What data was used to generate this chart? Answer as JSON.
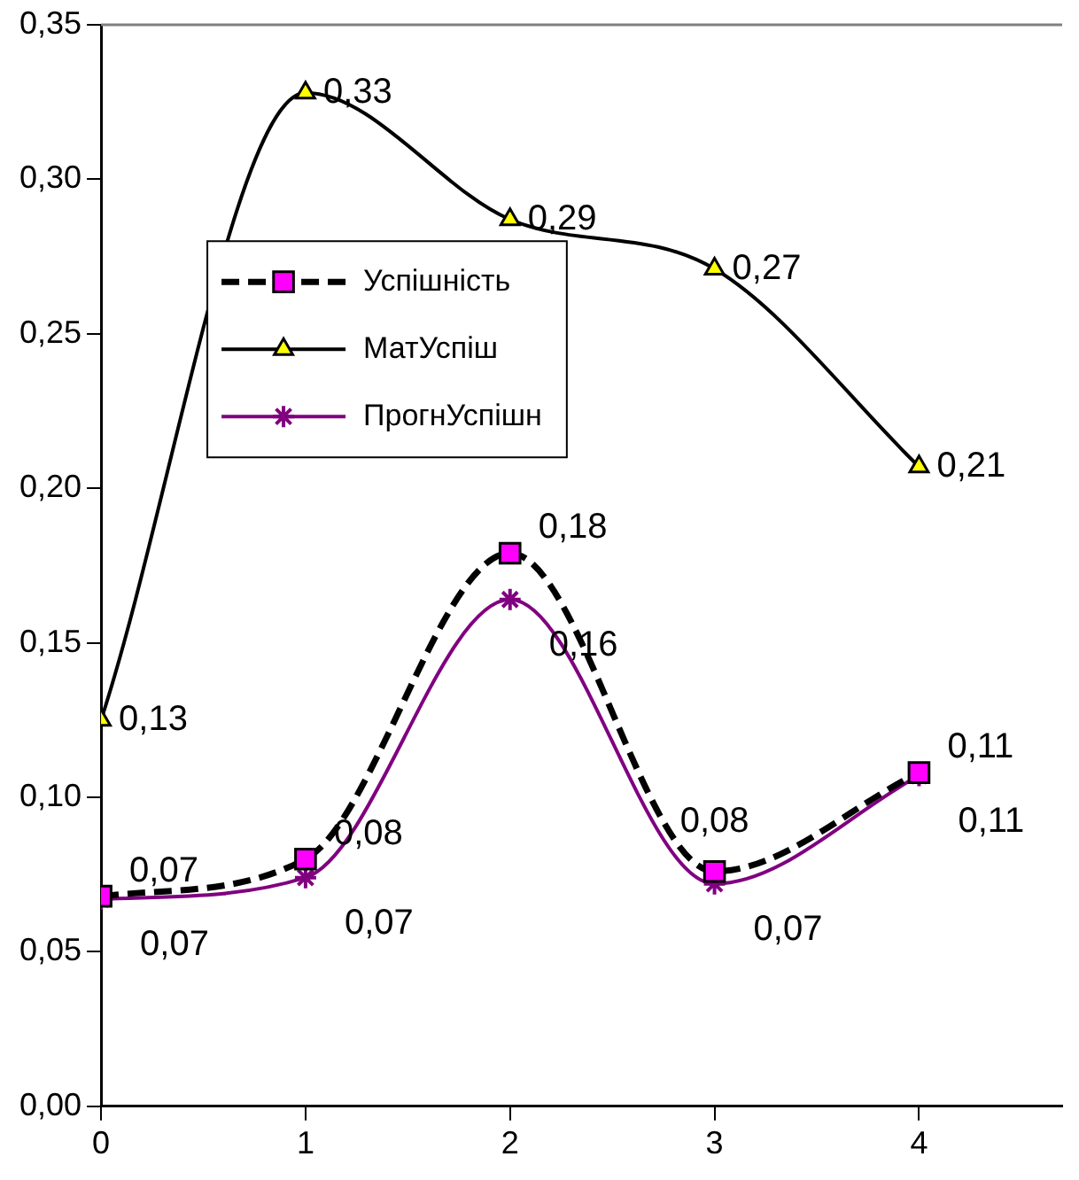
{
  "chart_data": {
    "type": "line",
    "x": [
      0,
      1,
      2,
      3,
      4
    ],
    "xlim": [
      0,
      4.7
    ],
    "xticks": [
      0,
      1,
      2,
      3,
      4
    ],
    "ylim": [
      0,
      0.35
    ],
    "yticks": [
      {
        "value": 0,
        "label": "0,00"
      },
      {
        "value": 0.05,
        "label": "0,05"
      },
      {
        "value": 0.1,
        "label": "0,10"
      },
      {
        "value": 0.15,
        "label": "0,15"
      },
      {
        "value": 0.2,
        "label": "0,20"
      },
      {
        "value": 0.25,
        "label": "0,25"
      },
      {
        "value": 0.3,
        "label": "0,30"
      },
      {
        "value": 0.35,
        "label": "0,35"
      }
    ],
    "grid": false,
    "legend": "left",
    "data_labels": true,
    "series": [
      {
        "name": "Успішність",
        "color": "#000000",
        "colors": [
          "#ff00ff",
          "#ff00ff",
          "#ff00ff",
          "#ff00ff",
          "#ff00ff"
        ],
        "marker": "square",
        "line_style": "dashed",
        "values": [
          0.068,
          0.08,
          0.179,
          0.076,
          0.108
        ],
        "value_labels": [
          "0,07",
          "0,08",
          "0,18",
          "0,08",
          "0,11"
        ]
      },
      {
        "name": "МатУспіш",
        "color": "#000000",
        "colors": [
          "#ffff00",
          "#ffff00",
          "#ffff00",
          "#ffff00",
          "#ffff00"
        ],
        "marker": "triangle",
        "line_style": "solid",
        "values": [
          0.125,
          0.328,
          0.287,
          0.271,
          0.207
        ],
        "value_labels": [
          "0,13",
          "0,33",
          "0,29",
          "0,27",
          "0,21"
        ]
      },
      {
        "name": "ПрогнУспішн",
        "color": "#800080",
        "marker": "cross",
        "line_style": "solid",
        "values": [
          0.067,
          0.074,
          0.164,
          0.072,
          0.107
        ],
        "value_labels": [
          "0,07",
          "0,07",
          "0,16",
          "0,07",
          "0,11"
        ]
      }
    ]
  }
}
